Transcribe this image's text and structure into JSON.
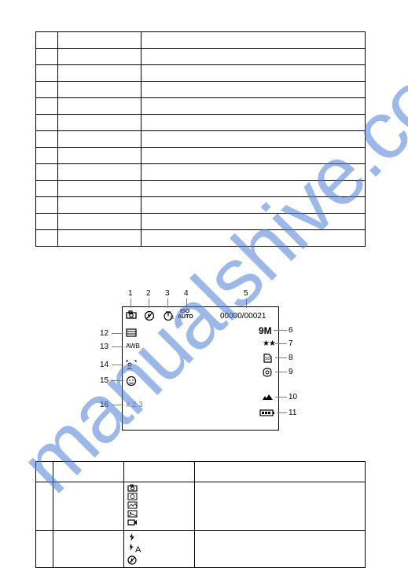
{
  "watermark_text": "manualshive.com",
  "watermark_color": "#4d7fd8",
  "table1": {
    "rows": 13
  },
  "diagram": {
    "top_labels": [
      "1",
      "2",
      "3",
      "4",
      "5"
    ],
    "right_labels": [
      "6",
      "7",
      "8",
      "9",
      "10",
      "11"
    ],
    "left_labels": [
      "12",
      "13",
      "14",
      "15",
      "16"
    ],
    "counter_text": "00000/00021",
    "size_text": "9M",
    "stars_text": "★★",
    "iso_label": "ISO",
    "auto_label": "AUTO",
    "zoom_text": "x 2.3",
    "awb_text": "AWB"
  },
  "table2_rows": [
    {
      "iconset": "A"
    },
    {
      "iconset": "B"
    }
  ],
  "iconset_A": [
    "camera",
    "face",
    "picture",
    "picture",
    "video"
  ],
  "iconset_B": [
    "bolt",
    "bolt-a",
    "circle-x"
  ]
}
